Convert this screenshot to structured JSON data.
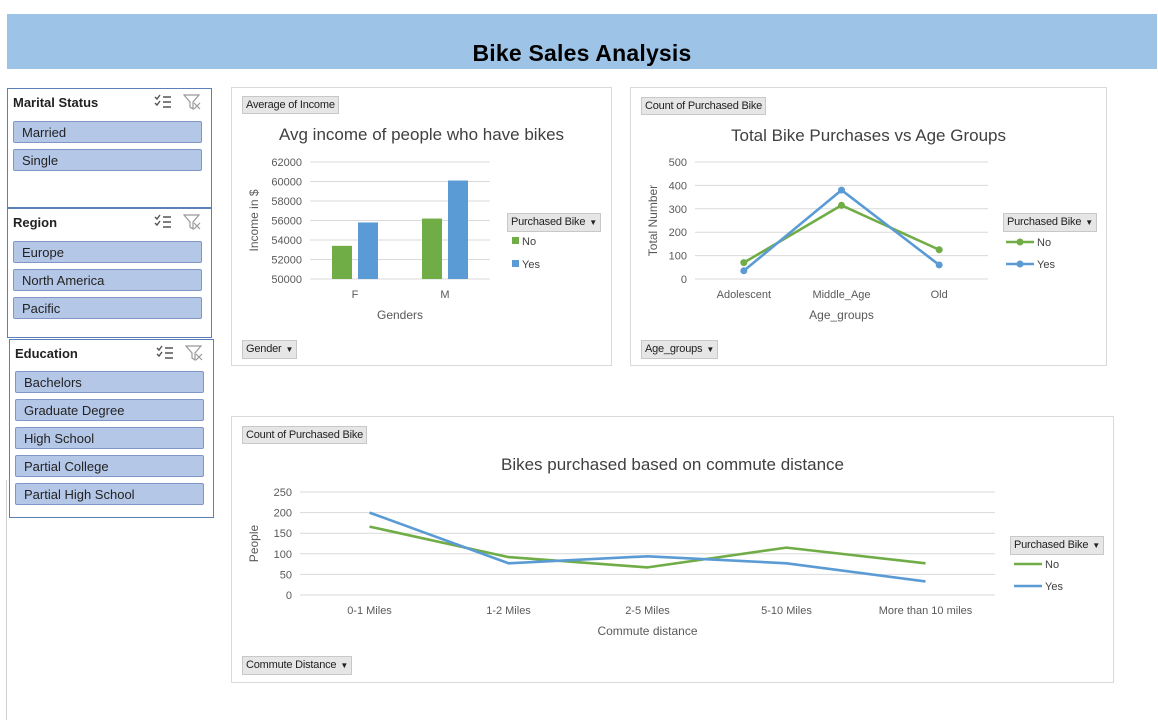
{
  "dashboard": {
    "title": "Bike Sales Analysis"
  },
  "slicers": {
    "marital": {
      "title": "Marital Status",
      "items": [
        "Married",
        "Single"
      ]
    },
    "region": {
      "title": "Region",
      "items": [
        "Europe",
        "North America",
        "Pacific"
      ]
    },
    "education": {
      "title": "Education",
      "items": [
        "Bachelors",
        "Graduate Degree",
        "High School",
        "Partial College",
        "Partial High School"
      ]
    }
  },
  "icons": {
    "multiselect": "multi-select-icon",
    "clear_filter": "clear-filter-icon",
    "dropdown": "dropdown-arrow-icon"
  },
  "colors": {
    "banner": "#9dc3e6",
    "no": "#70ad47",
    "yes": "#5b9bd5",
    "slicer_item": "#b4c7e7"
  },
  "panels": {
    "income": {
      "value_button": "Average of Income",
      "axis_button": "Gender",
      "legend_button": "Purchased Bike"
    },
    "age": {
      "value_button": "Count of Purchased Bike",
      "axis_button": "Age_groups",
      "legend_button": "Purchased Bike"
    },
    "commute": {
      "value_button": "Count of Purchased Bike",
      "axis_button": "Commute Distance",
      "legend_button": "Purchased Bike"
    }
  },
  "chart_data": [
    {
      "id": "income",
      "type": "bar",
      "title": "Avg income of people who have bikes",
      "xlabel": "Genders",
      "ylabel": "Income in $",
      "categories": [
        "F",
        "M"
      ],
      "ylim": [
        50000,
        62000
      ],
      "yticks": [
        50000,
        52000,
        54000,
        56000,
        58000,
        60000,
        62000
      ],
      "series": [
        {
          "name": "No",
          "color": "#70ad47",
          "values": [
            53400,
            56200
          ]
        },
        {
          "name": "Yes",
          "color": "#5b9bd5",
          "values": [
            55800,
            60100
          ]
        }
      ],
      "legend": "right",
      "grid": true
    },
    {
      "id": "age",
      "type": "line",
      "title": "Total Bike Purchases vs Age Groups",
      "xlabel": "Age_groups",
      "ylabel": "Total Number",
      "categories": [
        "Adolescent",
        "Middle_Age",
        "Old"
      ],
      "ylim": [
        0,
        500
      ],
      "yticks": [
        0,
        100,
        200,
        300,
        400,
        500
      ],
      "series": [
        {
          "name": "No",
          "color": "#70ad47",
          "values": [
            70,
            315,
            125
          ]
        },
        {
          "name": "Yes",
          "color": "#5b9bd5",
          "values": [
            35,
            380,
            60
          ]
        }
      ],
      "legend": "right",
      "grid": true
    },
    {
      "id": "commute",
      "type": "line",
      "title": "Bikes purchased based on commute distance",
      "xlabel": "Commute distance",
      "ylabel": "People",
      "categories": [
        "0-1 Miles",
        "1-2 Miles",
        "2-5 Miles",
        "5-10 Miles",
        "More than 10 miles"
      ],
      "ylim": [
        0,
        250
      ],
      "yticks": [
        0,
        50,
        100,
        150,
        200,
        250
      ],
      "series": [
        {
          "name": "No",
          "color": "#70ad47",
          "values": [
            166,
            92,
            67,
            115,
            77
          ]
        },
        {
          "name": "Yes",
          "color": "#5b9bd5",
          "values": [
            200,
            77,
            94,
            77,
            33
          ]
        }
      ],
      "legend": "right",
      "grid": true
    }
  ]
}
